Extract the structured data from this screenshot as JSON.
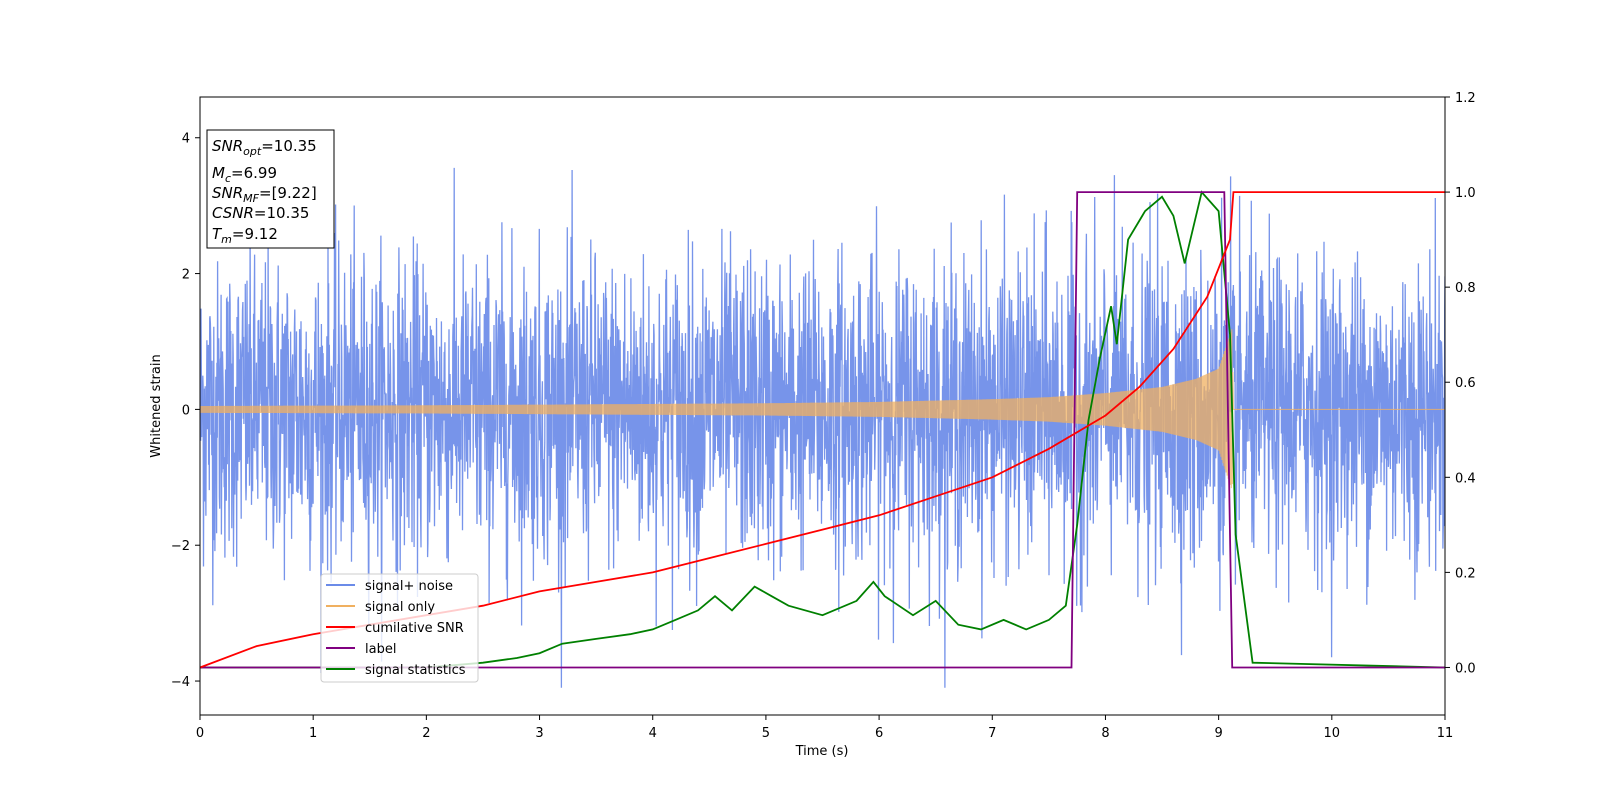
{
  "chart_data": {
    "type": "line",
    "xlabel": "Time (s)",
    "ylabel": "Whitened strain",
    "xlim": [
      0,
      11
    ],
    "ylim_left": [
      -4.5,
      4.6
    ],
    "ylim_right": [
      -0.1,
      1.2
    ],
    "x_ticks": [
      0,
      1,
      2,
      3,
      4,
      5,
      6,
      7,
      8,
      9,
      10,
      11
    ],
    "y_ticks_left": [
      -4,
      -2,
      0,
      2,
      4
    ],
    "y_ticks_right": [
      0.0,
      0.2,
      0.4,
      0.6,
      0.8,
      1.0,
      1.2
    ],
    "grid": false,
    "legend_position": "lower-left",
    "colors": {
      "signal_noise": "#6b8be8",
      "signal_only": "#f0b060",
      "cumulative_snr": "#ff0000",
      "label": "#800080",
      "signal_statistics": "#008000",
      "axes": "#000000"
    },
    "legend": [
      {
        "name": "signal+ noise",
        "color": "#6b8be8"
      },
      {
        "name": "signal only",
        "color": "#f0b060"
      },
      {
        "name": "cumilative SNR",
        "color": "#ff0000"
      },
      {
        "name": "label",
        "color": "#800080"
      },
      {
        "name": "signal statistics",
        "color": "#008000"
      }
    ],
    "annotation": [
      {
        "sym": "SNR",
        "sub": "opt",
        "val": "=10.35"
      },
      {
        "sym": "M",
        "sub": "c",
        "val": "=6.99"
      },
      {
        "sym": "SNR",
        "sub": "MF",
        "val": "=[9.22]"
      },
      {
        "sym": "CSNR",
        "sub": "",
        "val": "=10.35"
      },
      {
        "sym": "T",
        "sub": "m",
        "val": "=9.12"
      }
    ],
    "series": [
      {
        "name": "signal+ noise",
        "axis": "left",
        "kind": "noise",
        "std": 1.1,
        "x_range": [
          0,
          11
        ]
      },
      {
        "name": "signal only",
        "axis": "left",
        "kind": "chirp_envelope",
        "x": [
          0,
          1,
          2,
          3,
          4,
          5,
          6,
          7,
          7.5,
          8,
          8.5,
          8.8,
          9.0,
          9.12,
          9.13,
          11
        ],
        "envelope": [
          0.05,
          0.055,
          0.06,
          0.07,
          0.08,
          0.09,
          0.11,
          0.15,
          0.18,
          0.24,
          0.33,
          0.45,
          0.6,
          1.2,
          0,
          0
        ]
      },
      {
        "name": "cumilative SNR",
        "axis": "right",
        "x": [
          0,
          0.5,
          1,
          1.5,
          2,
          2.5,
          3,
          3.5,
          4,
          4.5,
          5,
          5.5,
          6,
          6.5,
          7,
          7.5,
          8,
          8.3,
          8.6,
          8.9,
          9.1,
          9.13,
          9.2,
          11
        ],
        "y": [
          0.0,
          0.045,
          0.07,
          0.09,
          0.11,
          0.13,
          0.16,
          0.18,
          0.2,
          0.23,
          0.26,
          0.29,
          0.32,
          0.36,
          0.4,
          0.46,
          0.53,
          0.59,
          0.67,
          0.78,
          0.9,
          1.0,
          1.0,
          1.0
        ]
      },
      {
        "name": "label",
        "axis": "right",
        "x": [
          0,
          7.7,
          7.75,
          9.05,
          9.12,
          11
        ],
        "y": [
          0,
          0,
          1,
          1,
          0,
          0
        ]
      },
      {
        "name": "signal statistics",
        "axis": "right",
        "x": [
          0,
          2.0,
          2.5,
          2.8,
          3.0,
          3.2,
          3.5,
          3.8,
          4.0,
          4.2,
          4.4,
          4.55,
          4.7,
          4.9,
          5.05,
          5.2,
          5.5,
          5.8,
          5.95,
          6.05,
          6.3,
          6.5,
          6.7,
          6.9,
          7.1,
          7.3,
          7.5,
          7.65,
          7.75,
          7.85,
          7.95,
          8.05,
          8.1,
          8.2,
          8.35,
          8.5,
          8.6,
          8.7,
          8.85,
          9.0,
          9.1,
          9.15,
          9.3,
          11
        ],
        "y": [
          0,
          0.0,
          0.01,
          0.02,
          0.03,
          0.05,
          0.06,
          0.07,
          0.08,
          0.1,
          0.12,
          0.15,
          0.12,
          0.17,
          0.15,
          0.13,
          0.11,
          0.14,
          0.18,
          0.15,
          0.11,
          0.14,
          0.09,
          0.08,
          0.1,
          0.08,
          0.1,
          0.13,
          0.3,
          0.52,
          0.65,
          0.76,
          0.68,
          0.9,
          0.96,
          0.99,
          0.95,
          0.85,
          1.0,
          0.96,
          0.7,
          0.28,
          0.01,
          0.0
        ]
      }
    ]
  }
}
